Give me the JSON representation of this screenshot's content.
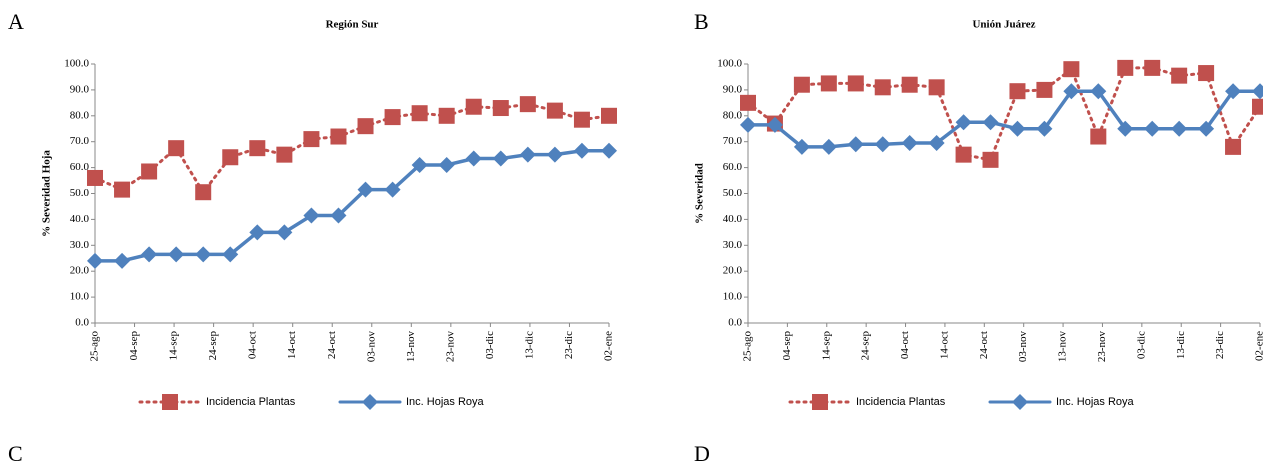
{
  "panels": [
    "A",
    "B",
    "C",
    "D"
  ],
  "chart_data": [
    {
      "type": "line",
      "title": "Región Sur",
      "y_label": "% Severidad Hoja",
      "xticks": [
        "25-ago",
        "04-sep",
        "14-sep",
        "24-sep",
        "04-oct",
        "14-oct",
        "24-oct",
        "03-nov",
        "13-nov",
        "23-nov",
        "03-dic",
        "13-dic",
        "23-dic",
        "02-ene"
      ],
      "ylim": [
        0,
        100
      ],
      "yticks": [
        {
          "value": 0,
          "label": "0.0"
        },
        {
          "value": 10,
          "label": "10.0"
        },
        {
          "value": 20,
          "label": "20.0"
        },
        {
          "value": 30,
          "label": "30.0"
        },
        {
          "value": 40,
          "label": "40.0"
        },
        {
          "value": 50,
          "label": "50.0"
        },
        {
          "value": 60,
          "label": "60.0"
        },
        {
          "value": 70,
          "label": "70.0"
        },
        {
          "value": 80,
          "label": "80.0"
        },
        {
          "value": 90,
          "label": "90.0"
        },
        {
          "value": 100,
          "label": "100.0"
        }
      ],
      "series": [
        {
          "name": "Incidencia Plantas",
          "color": "#c0504d",
          "style": "dotted",
          "marker": "square",
          "values": [
            56,
            51.5,
            58.5,
            67.5,
            50.5,
            64,
            67.5,
            65,
            71,
            72,
            76,
            79.5,
            81,
            80,
            83.5,
            83,
            84.5,
            82,
            78.5,
            80
          ]
        },
        {
          "name": "Inc. Hojas Roya",
          "color": "#4f81bd",
          "style": "solid",
          "marker": "diamond",
          "values": [
            24,
            24,
            26.5,
            26.5,
            26.5,
            26.5,
            35,
            35,
            41.5,
            41.5,
            51.5,
            51.5,
            61,
            61,
            63.5,
            63.5,
            65,
            65,
            66.5,
            66.5
          ]
        }
      ]
    },
    {
      "type": "line",
      "title": "Unión Juárez",
      "y_label": "% Severidad",
      "xticks": [
        "25-ago",
        "04-sep",
        "14-sep",
        "24-sep",
        "04-oct",
        "14-oct",
        "24-oct",
        "03-nov",
        "13-nov",
        "23-nov",
        "03-dic",
        "13-dic",
        "23-dic",
        "02-ene"
      ],
      "ylim": [
        0,
        100
      ],
      "yticks": [
        {
          "value": 0,
          "label": "0.0"
        },
        {
          "value": 10,
          "label": "10.0"
        },
        {
          "value": 20,
          "label": "20.0"
        },
        {
          "value": 30,
          "label": "30.0"
        },
        {
          "value": 40,
          "label": "40.0"
        },
        {
          "value": 50,
          "label": "50.0"
        },
        {
          "value": 60,
          "label": "60.0"
        },
        {
          "value": 70,
          "label": "70.0"
        },
        {
          "value": 80,
          "label": "80.0"
        },
        {
          "value": 90,
          "label": "90.0"
        },
        {
          "value": 100,
          "label": "100.0"
        }
      ],
      "series": [
        {
          "name": "Incidencia Plantas",
          "color": "#c0504d",
          "style": "dotted",
          "marker": "square",
          "values": [
            85,
            77,
            92,
            92.5,
            92.5,
            91,
            92,
            91,
            65,
            63,
            89.5,
            90,
            98,
            72,
            98.5,
            98.5,
            95.5,
            96.5,
            68,
            83.5
          ]
        },
        {
          "name": "Inc. Hojas Roya",
          "color": "#4f81bd",
          "style": "solid",
          "marker": "diamond",
          "values": [
            76.5,
            76.5,
            68,
            68,
            69,
            69,
            69.5,
            69.5,
            77.5,
            77.5,
            75,
            75,
            89.5,
            89.5,
            75,
            75,
            75,
            75,
            89.5,
            89.5
          ]
        }
      ]
    }
  ]
}
